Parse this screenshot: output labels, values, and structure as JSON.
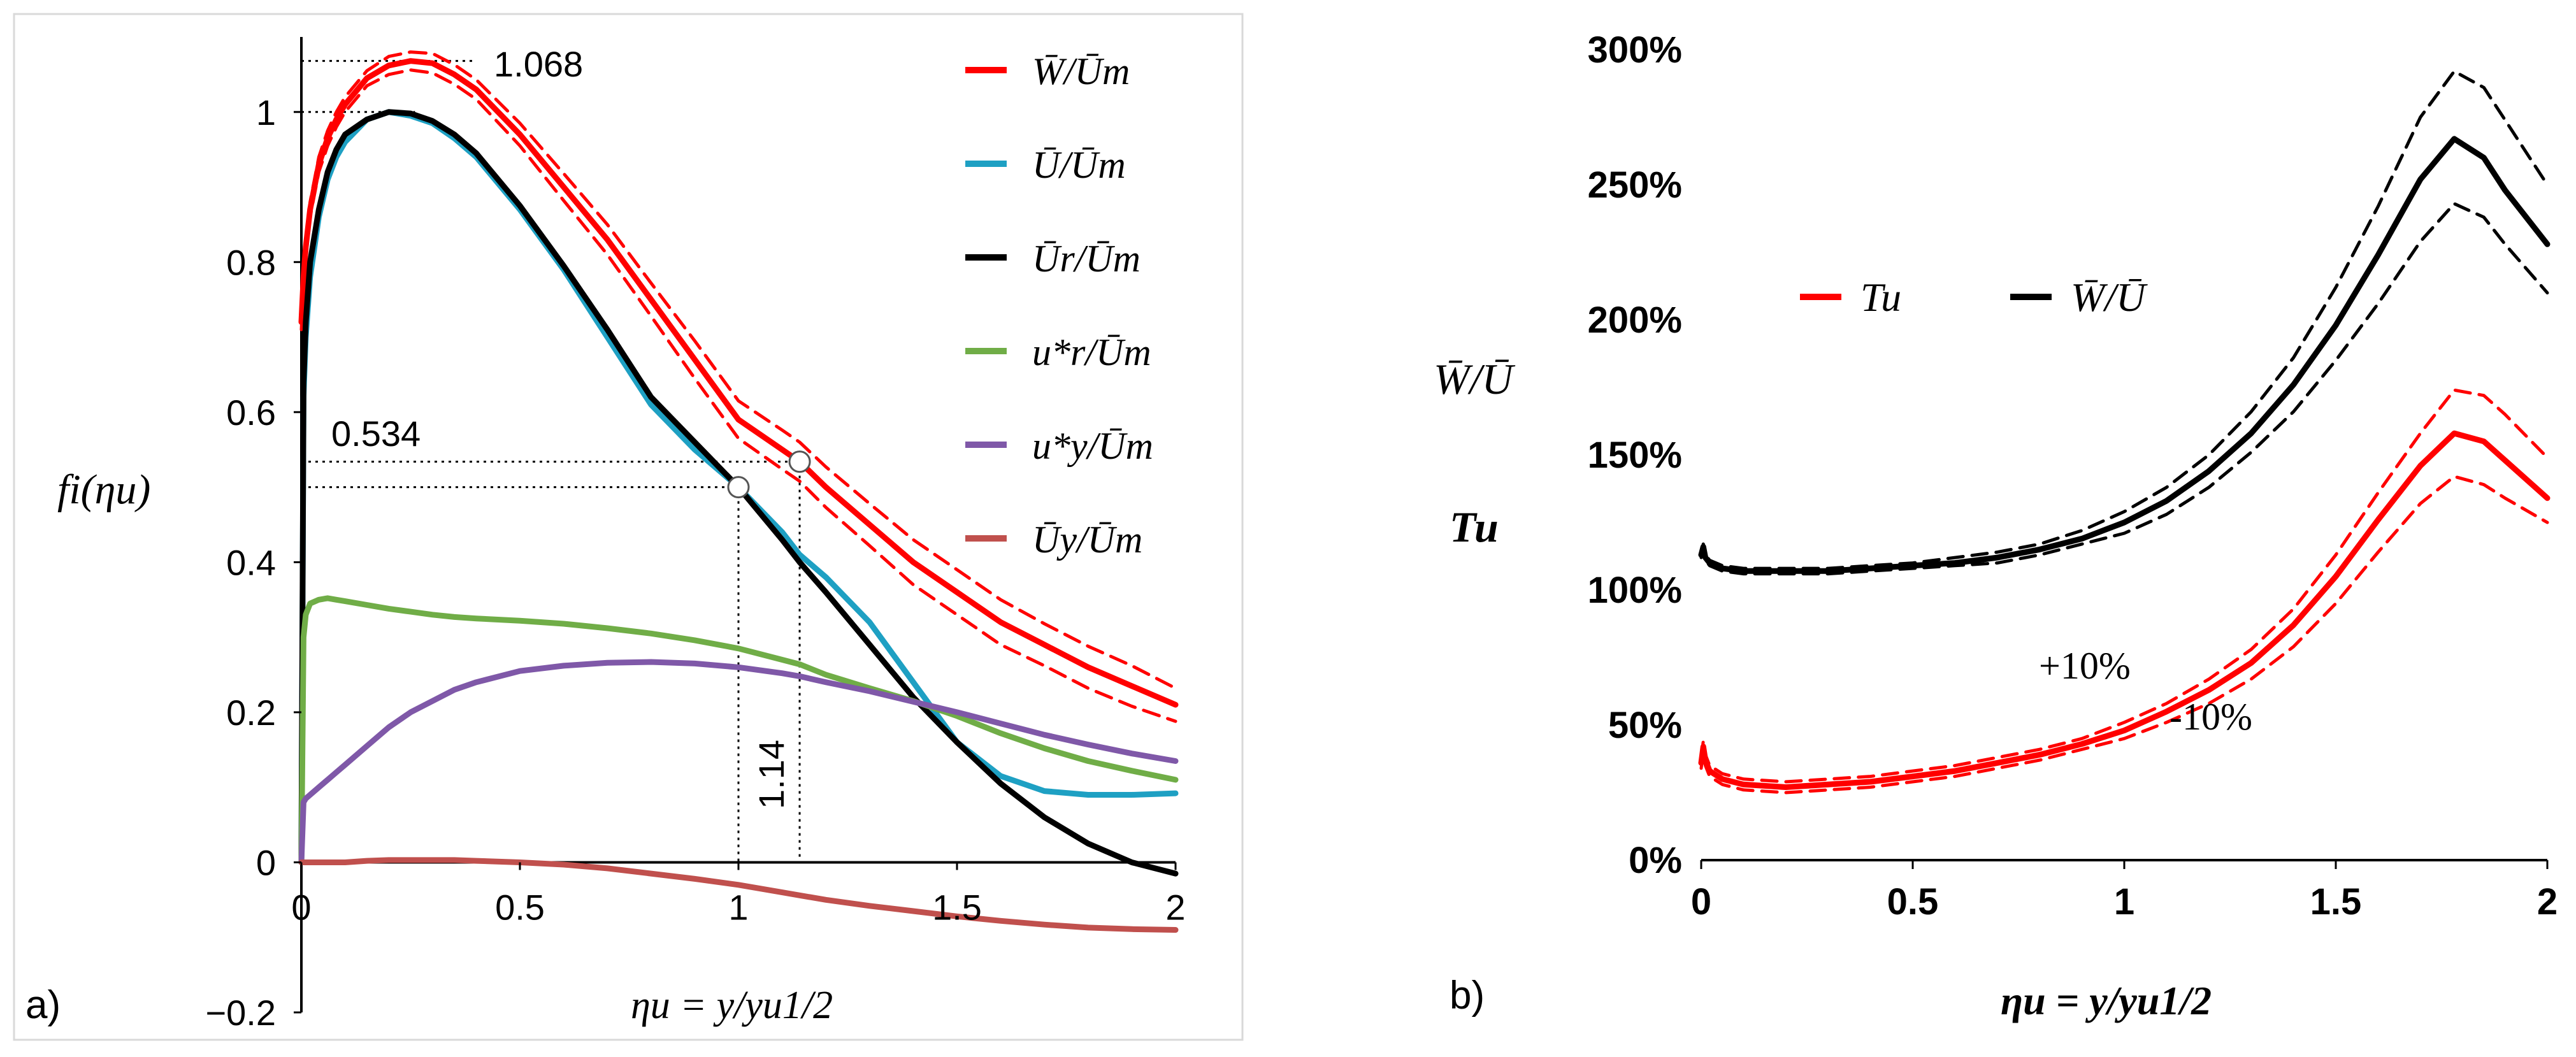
{
  "figure": {
    "panel_a_label": "a)",
    "panel_b_label": "b)"
  },
  "chart_data": [
    {
      "type": "line",
      "panel": "a)",
      "xlabel": "ηu = y/yu1/2",
      "ylabel": "fi(ηu)",
      "xlim": [
        0,
        2
      ],
      "ylim": [
        -0.2,
        1.1
      ],
      "x_ticks": [
        "0",
        "0.5",
        "1",
        "1.5",
        "2"
      ],
      "y_ticks": [
        "−0.2",
        "0",
        "0.2",
        "0.4",
        "0.6",
        "0.8",
        "1"
      ],
      "grid": false,
      "legend_position": "right",
      "x": [
        0,
        0.005,
        0.01,
        0.02,
        0.04,
        0.06,
        0.08,
        0.1,
        0.15,
        0.2,
        0.25,
        0.3,
        0.35,
        0.4,
        0.5,
        0.6,
        0.7,
        0.8,
        0.9,
        1.0,
        1.1,
        1.14,
        1.2,
        1.3,
        1.4,
        1.5,
        1.6,
        1.7,
        1.8,
        1.9,
        2.0
      ],
      "series": [
        {
          "name": "W̄/Ūm",
          "color": "#ff0000",
          "values": [
            0.72,
            0.78,
            0.82,
            0.87,
            0.93,
            0.965,
            0.99,
            1.01,
            1.045,
            1.062,
            1.068,
            1.065,
            1.05,
            1.03,
            0.97,
            0.9,
            0.83,
            0.75,
            0.67,
            0.59,
            0.55,
            0.534,
            0.5,
            0.45,
            0.4,
            0.36,
            0.32,
            0.29,
            0.26,
            0.235,
            0.21
          ]
        },
        {
          "name": "W̄/Ūm +10%",
          "color": "#ff0000",
          "style": "dashed",
          "values": [
            0.73,
            0.79,
            0.83,
            0.88,
            0.94,
            0.975,
            1.0,
            1.02,
            1.055,
            1.074,
            1.08,
            1.078,
            1.063,
            1.043,
            0.985,
            0.918,
            0.85,
            0.772,
            0.695,
            0.615,
            0.576,
            0.56,
            0.527,
            0.478,
            0.43,
            0.39,
            0.35,
            0.318,
            0.288,
            0.262,
            0.232
          ]
        },
        {
          "name": "W̄/Ūm −10%",
          "color": "#ff0000",
          "style": "dashed",
          "values": [
            0.71,
            0.77,
            0.81,
            0.86,
            0.92,
            0.955,
            0.98,
            1.0,
            1.035,
            1.05,
            1.056,
            1.052,
            1.037,
            1.017,
            0.955,
            0.882,
            0.81,
            0.728,
            0.645,
            0.565,
            0.524,
            0.508,
            0.473,
            0.422,
            0.37,
            0.33,
            0.29,
            0.262,
            0.232,
            0.208,
            0.188
          ]
        },
        {
          "name": "Ū/Ūm",
          "color": "#1ea0c3",
          "values": [
            0.0,
            0.62,
            0.7,
            0.78,
            0.86,
            0.91,
            0.94,
            0.96,
            0.99,
            1.0,
            0.995,
            0.985,
            0.965,
            0.94,
            0.87,
            0.79,
            0.7,
            0.61,
            0.55,
            0.5,
            0.44,
            0.41,
            0.38,
            0.32,
            0.24,
            0.16,
            0.115,
            0.095,
            0.09,
            0.09,
            0.092
          ]
        },
        {
          "name": "Ūr/Ūm",
          "color": "#000000",
          "values": [
            0.0,
            0.64,
            0.72,
            0.8,
            0.87,
            0.92,
            0.95,
            0.97,
            0.99,
            1.0,
            0.998,
            0.988,
            0.97,
            0.945,
            0.875,
            0.795,
            0.71,
            0.62,
            0.56,
            0.5,
            0.43,
            0.4,
            0.36,
            0.29,
            0.22,
            0.16,
            0.105,
            0.06,
            0.025,
            0.0,
            -0.015
          ]
        },
        {
          "name": "u*r/Ūm",
          "color": "#70ad47",
          "values": [
            0.0,
            0.3,
            0.33,
            0.345,
            0.35,
            0.352,
            0.35,
            0.348,
            0.343,
            0.338,
            0.334,
            0.33,
            0.327,
            0.325,
            0.322,
            0.318,
            0.312,
            0.305,
            0.296,
            0.285,
            0.27,
            0.264,
            0.25,
            0.232,
            0.215,
            0.195,
            0.172,
            0.152,
            0.135,
            0.122,
            0.11
          ]
        },
        {
          "name": "u*y/Ūm",
          "color": "#7f58a8",
          "values": [
            0.0,
            0.08,
            0.085,
            0.09,
            0.1,
            0.11,
            0.12,
            0.13,
            0.155,
            0.18,
            0.2,
            0.215,
            0.23,
            0.24,
            0.255,
            0.262,
            0.266,
            0.267,
            0.265,
            0.26,
            0.252,
            0.248,
            0.24,
            0.228,
            0.214,
            0.2,
            0.185,
            0.17,
            0.157,
            0.145,
            0.135
          ]
        },
        {
          "name": "Ūy/Ūm",
          "color": "#c0504d",
          "values": [
            0.0,
            0.0,
            0.0,
            0.0,
            0.0,
            0.0,
            0.0,
            0.0,
            0.002,
            0.003,
            0.003,
            0.003,
            0.003,
            0.002,
            0.0,
            -0.003,
            -0.008,
            -0.015,
            -0.022,
            -0.03,
            -0.04,
            -0.044,
            -0.05,
            -0.058,
            -0.065,
            -0.072,
            -0.078,
            -0.083,
            -0.087,
            -0.089,
            -0.09
          ]
        }
      ],
      "annotations": [
        {
          "text": "1.068",
          "at_y": 1.068
        },
        {
          "text": "0.534",
          "at_y": 0.534
        },
        {
          "text": "1.14",
          "at_x": 1.14
        }
      ],
      "markers": [
        {
          "x": 1.0,
          "y": 0.5
        },
        {
          "x": 1.14,
          "y": 0.534
        }
      ]
    },
    {
      "type": "line",
      "panel": "b)",
      "xlabel": "ηu = y/yu1/2",
      "ylabel": "W̄/Ū",
      "ylabel2": "Tu",
      "xlim": [
        0,
        2
      ],
      "ylim": [
        0,
        3
      ],
      "x_ticks": [
        "0",
        "0.5",
        "1",
        "1.5",
        "2"
      ],
      "y_ticks": [
        "0%",
        "50%",
        "100%",
        "150%",
        "200%",
        "250%",
        "300%"
      ],
      "grid": false,
      "legend_position": "top-left",
      "x": [
        0,
        0.005,
        0.01,
        0.02,
        0.05,
        0.1,
        0.2,
        0.3,
        0.4,
        0.5,
        0.6,
        0.7,
        0.8,
        0.9,
        1.0,
        1.1,
        1.2,
        1.3,
        1.4,
        1.5,
        1.6,
        1.7,
        1.78,
        1.85,
        1.9,
        2.0
      ],
      "series": [
        {
          "name": "Tu",
          "color": "#ff0000",
          "values": [
            0.36,
            0.42,
            0.37,
            0.33,
            0.3,
            0.28,
            0.27,
            0.28,
            0.29,
            0.31,
            0.33,
            0.36,
            0.39,
            0.43,
            0.48,
            0.55,
            0.63,
            0.73,
            0.87,
            1.05,
            1.26,
            1.46,
            1.58,
            1.55,
            1.48,
            1.34
          ]
        },
        {
          "name": "Tu +10%",
          "color": "#ff0000",
          "style": "dashed",
          "values": [
            0.38,
            0.44,
            0.39,
            0.35,
            0.32,
            0.3,
            0.29,
            0.3,
            0.31,
            0.33,
            0.35,
            0.38,
            0.41,
            0.45,
            0.51,
            0.58,
            0.67,
            0.78,
            0.93,
            1.13,
            1.36,
            1.58,
            1.74,
            1.72,
            1.65,
            1.49
          ]
        },
        {
          "name": "Tu −10%",
          "color": "#ff0000",
          "style": "dashed",
          "values": [
            0.34,
            0.4,
            0.35,
            0.31,
            0.28,
            0.26,
            0.25,
            0.26,
            0.27,
            0.29,
            0.31,
            0.34,
            0.37,
            0.41,
            0.45,
            0.51,
            0.58,
            0.67,
            0.79,
            0.95,
            1.14,
            1.32,
            1.42,
            1.39,
            1.34,
            1.25
          ]
        },
        {
          "name": "W̄/Ū",
          "color": "#000000",
          "values": [
            1.13,
            1.16,
            1.12,
            1.1,
            1.08,
            1.07,
            1.07,
            1.07,
            1.08,
            1.09,
            1.1,
            1.12,
            1.15,
            1.19,
            1.25,
            1.33,
            1.44,
            1.58,
            1.76,
            1.98,
            2.24,
            2.52,
            2.67,
            2.6,
            2.48,
            2.28
          ]
        },
        {
          "name": "W̄/Ū +10%",
          "color": "#000000",
          "style": "dashed",
          "values": [
            1.14,
            1.17,
            1.13,
            1.11,
            1.09,
            1.08,
            1.08,
            1.08,
            1.09,
            1.1,
            1.12,
            1.14,
            1.17,
            1.22,
            1.29,
            1.38,
            1.5,
            1.66,
            1.86,
            2.12,
            2.42,
            2.75,
            2.92,
            2.86,
            2.74,
            2.5
          ]
        },
        {
          "name": "W̄/Ū −10%",
          "color": "#000000",
          "style": "dashed",
          "values": [
            1.12,
            1.15,
            1.11,
            1.09,
            1.07,
            1.06,
            1.06,
            1.06,
            1.07,
            1.08,
            1.09,
            1.1,
            1.13,
            1.17,
            1.21,
            1.28,
            1.38,
            1.51,
            1.66,
            1.85,
            2.06,
            2.29,
            2.43,
            2.38,
            2.28,
            2.1
          ]
        }
      ],
      "annotations": [
        {
          "text": "+10%"
        },
        {
          "text": "-10%"
        }
      ]
    }
  ]
}
